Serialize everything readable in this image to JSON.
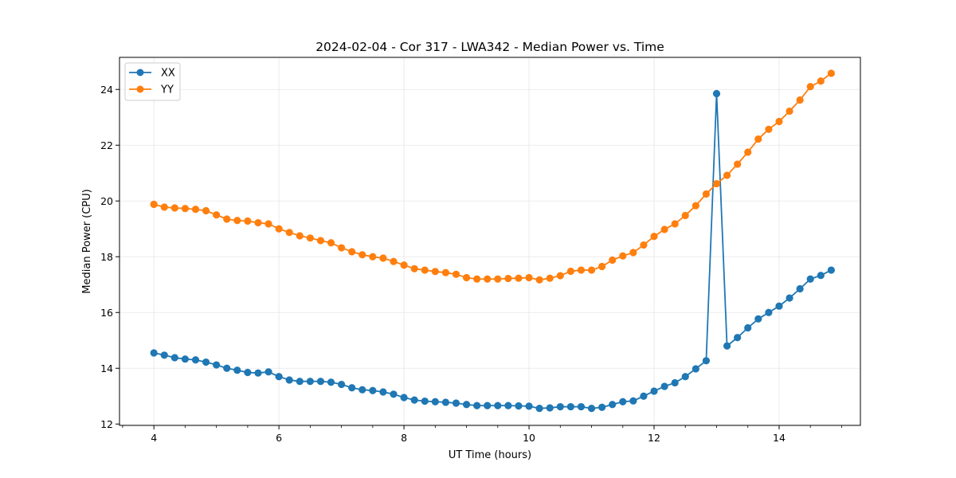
{
  "chart_data": {
    "type": "line",
    "title": "2024-02-04 - Cor 317 - LWA342 - Median Power vs. Time",
    "xlabel": "UT Time (hours)",
    "ylabel": "Median Power (CPU)",
    "xlim": [
      3.45,
      15.3
    ],
    "ylim": [
      11.95,
      25.15
    ],
    "xticks": [
      4,
      6,
      8,
      10,
      12,
      14
    ],
    "xtick_labels": [
      "4",
      "6",
      "8",
      "10",
      "12",
      "14"
    ],
    "xminor_step": 0.5,
    "yticks": [
      12,
      14,
      16,
      18,
      20,
      22,
      24
    ],
    "ytick_labels": [
      "12",
      "14",
      "16",
      "18",
      "20",
      "22",
      "24"
    ],
    "grid": true,
    "legend_position": "top-left",
    "x": [
      4.0,
      4.1667,
      4.3333,
      4.5,
      4.6667,
      4.8333,
      5.0,
      5.1667,
      5.3333,
      5.5,
      5.6667,
      5.8333,
      6.0,
      6.1667,
      6.3333,
      6.5,
      6.6667,
      6.8333,
      7.0,
      7.1667,
      7.3333,
      7.5,
      7.6667,
      7.8333,
      8.0,
      8.1667,
      8.3333,
      8.5,
      8.6667,
      8.8333,
      9.0,
      9.1667,
      9.3333,
      9.5,
      9.6667,
      9.8333,
      10.0,
      10.1667,
      10.3333,
      10.5,
      10.6667,
      10.8333,
      11.0,
      11.1667,
      11.3333,
      11.5,
      11.6667,
      11.8333,
      12.0,
      12.1667,
      12.3333,
      12.5,
      12.6667,
      12.8333,
      13.0,
      13.1667,
      13.3333,
      13.5,
      13.6667,
      13.8333,
      14.0,
      14.1667,
      14.3333,
      14.5,
      14.6667,
      14.8333
    ],
    "series": [
      {
        "name": "XX",
        "color": "#1f77b4",
        "values": [
          14.55,
          14.47,
          14.38,
          14.33,
          14.3,
          14.22,
          14.12,
          14.0,
          13.93,
          13.85,
          13.83,
          13.87,
          13.7,
          13.58,
          13.53,
          13.53,
          13.53,
          13.5,
          13.42,
          13.3,
          13.23,
          13.2,
          13.15,
          13.07,
          12.95,
          12.86,
          12.82,
          12.8,
          12.78,
          12.75,
          12.7,
          12.66,
          12.66,
          12.66,
          12.66,
          12.65,
          12.64,
          12.56,
          12.58,
          12.62,
          12.62,
          12.62,
          12.56,
          12.6,
          12.7,
          12.8,
          12.83,
          13.0,
          13.18,
          13.35,
          13.48,
          13.7,
          13.98,
          14.27,
          23.85,
          14.8,
          15.1,
          15.45,
          15.77,
          16.0,
          16.23,
          16.52,
          16.85,
          17.2,
          17.33,
          17.52
        ]
      },
      {
        "name": "YY",
        "color": "#ff7f0e",
        "values": [
          19.88,
          19.78,
          19.75,
          19.73,
          19.7,
          19.65,
          19.5,
          19.35,
          19.3,
          19.28,
          19.22,
          19.18,
          19.0,
          18.87,
          18.75,
          18.67,
          18.58,
          18.5,
          18.32,
          18.18,
          18.07,
          18.0,
          17.95,
          17.83,
          17.7,
          17.57,
          17.52,
          17.47,
          17.43,
          17.37,
          17.25,
          17.2,
          17.2,
          17.2,
          17.22,
          17.23,
          17.25,
          17.17,
          17.23,
          17.32,
          17.48,
          17.52,
          17.52,
          17.65,
          17.88,
          18.03,
          18.15,
          18.42,
          18.73,
          18.98,
          19.18,
          19.48,
          19.83,
          20.25,
          20.62,
          20.92,
          21.32,
          21.75,
          22.22,
          22.57,
          22.85,
          23.22,
          23.62,
          24.1,
          24.3,
          24.58
        ]
      }
    ]
  }
}
